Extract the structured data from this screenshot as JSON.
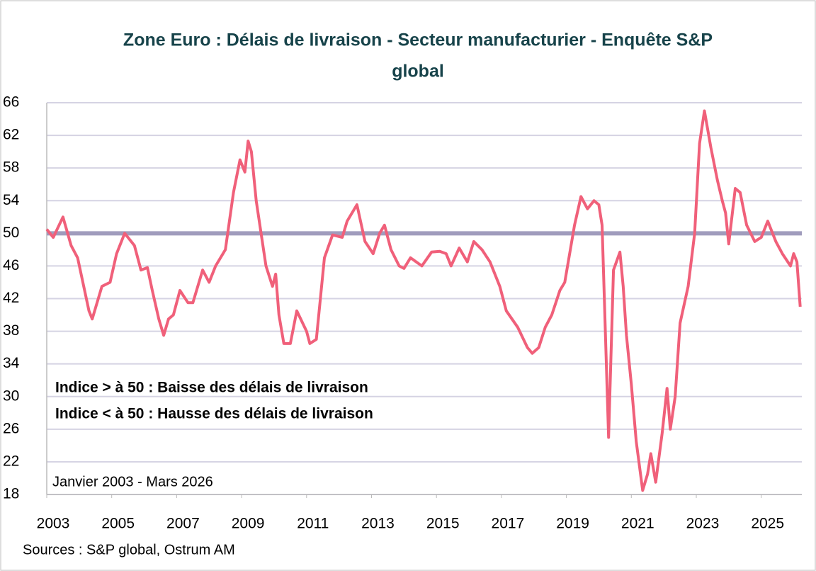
{
  "chart_data": {
    "type": "line",
    "title": [
      "Zone Euro : Délais de livraison - Secteur manufacturier - Enquête S&P",
      "global"
    ],
    "annotations": [
      "Indice > à 50 : Baisse des délais de livraison",
      "Indice < à 50 : Hausse des délais de livraison",
      "Janvier 2003 - Mars 2026"
    ],
    "source": "Sources : S&P global, Ostrum AM",
    "xlim": [
      2003,
      2026.25
    ],
    "xticks": [
      2003,
      2005,
      2007,
      2009,
      2011,
      2013,
      2015,
      2017,
      2019,
      2021,
      2023,
      2025
    ],
    "ylim": [
      18,
      66
    ],
    "yticks": [
      18,
      22,
      26,
      30,
      34,
      38,
      42,
      46,
      50,
      54,
      58,
      62,
      66
    ],
    "grid": true,
    "reference_line": {
      "value": 50,
      "color": "#a09cbd"
    },
    "x": [
      2003.0,
      2003.2,
      2003.5,
      2003.75,
      2003.95,
      2004.3,
      2004.4,
      2004.7,
      2004.95,
      2005.15,
      2005.4,
      2005.7,
      2005.9,
      2006.1,
      2006.25,
      2006.45,
      2006.6,
      2006.75,
      2006.9,
      2007.1,
      2007.35,
      2007.5,
      2007.8,
      2008.0,
      2008.2,
      2008.5,
      2008.75,
      2008.95,
      2009.1,
      2009.2,
      2009.3,
      2009.45,
      2009.75,
      2009.95,
      2010.05,
      2010.15,
      2010.3,
      2010.5,
      2010.7,
      2011.0,
      2011.1,
      2011.3,
      2011.55,
      2011.8,
      2012.1,
      2012.25,
      2012.55,
      2012.8,
      2013.05,
      2013.25,
      2013.4,
      2013.6,
      2013.85,
      2014.0,
      2014.2,
      2014.55,
      2014.85,
      2015.1,
      2015.3,
      2015.45,
      2015.7,
      2015.95,
      2016.15,
      2016.4,
      2016.65,
      2016.95,
      2017.15,
      2017.5,
      2017.8,
      2017.95,
      2018.15,
      2018.35,
      2018.55,
      2018.8,
      2018.95,
      2019.25,
      2019.45,
      2019.65,
      2019.85,
      2020.0,
      2020.1,
      2020.3,
      2020.45,
      2020.65,
      2020.75,
      2020.85,
      2021.0,
      2021.15,
      2021.35,
      2021.5,
      2021.6,
      2021.75,
      2021.95,
      2022.1,
      2022.2,
      2022.35,
      2022.5,
      2022.75,
      2022.95,
      2023.1,
      2023.25,
      2023.45,
      2023.65,
      2023.8,
      2023.9,
      2024.0,
      2024.2,
      2024.35,
      2024.55,
      2024.8,
      2025.0,
      2025.2,
      2025.45,
      2025.65,
      2025.9,
      2026.0,
      2026.1,
      2026.2
    ],
    "series": [
      {
        "color": "#f0607a",
        "values": [
          50.5,
          49.5,
          52,
          48.5,
          47,
          40.5,
          39.5,
          43.5,
          44,
          47.5,
          50,
          48.5,
          45.5,
          45.8,
          43,
          39.5,
          37.5,
          39.5,
          40,
          43,
          41.5,
          41.5,
          45.5,
          44,
          46,
          48,
          55,
          59,
          57.5,
          61.3,
          60,
          54,
          46,
          43.5,
          45,
          40,
          36.5,
          36.5,
          40.5,
          38,
          36.5,
          37,
          47,
          49.8,
          49.5,
          51.5,
          53.5,
          49,
          47.5,
          50,
          51,
          48,
          46,
          45.7,
          47,
          46,
          47.7,
          47.8,
          47.5,
          46,
          48.2,
          46.5,
          49,
          48,
          46.5,
          43.5,
          40.5,
          38.5,
          36,
          35.3,
          36,
          38.5,
          40,
          43,
          44,
          51,
          54.5,
          53,
          54,
          53.5,
          51,
          25,
          45.5,
          47.7,
          43.5,
          37.5,
          31.5,
          24.5,
          18.5,
          20.5,
          23,
          19.5,
          25.5,
          31,
          26,
          30,
          39,
          43.5,
          50,
          61,
          65,
          60.5,
          56.5,
          54,
          52.5,
          48.7,
          55.5,
          55,
          51,
          49,
          49.5,
          51.5,
          49,
          47.5,
          46,
          47.5,
          46.5,
          41
        ]
      }
    ]
  }
}
